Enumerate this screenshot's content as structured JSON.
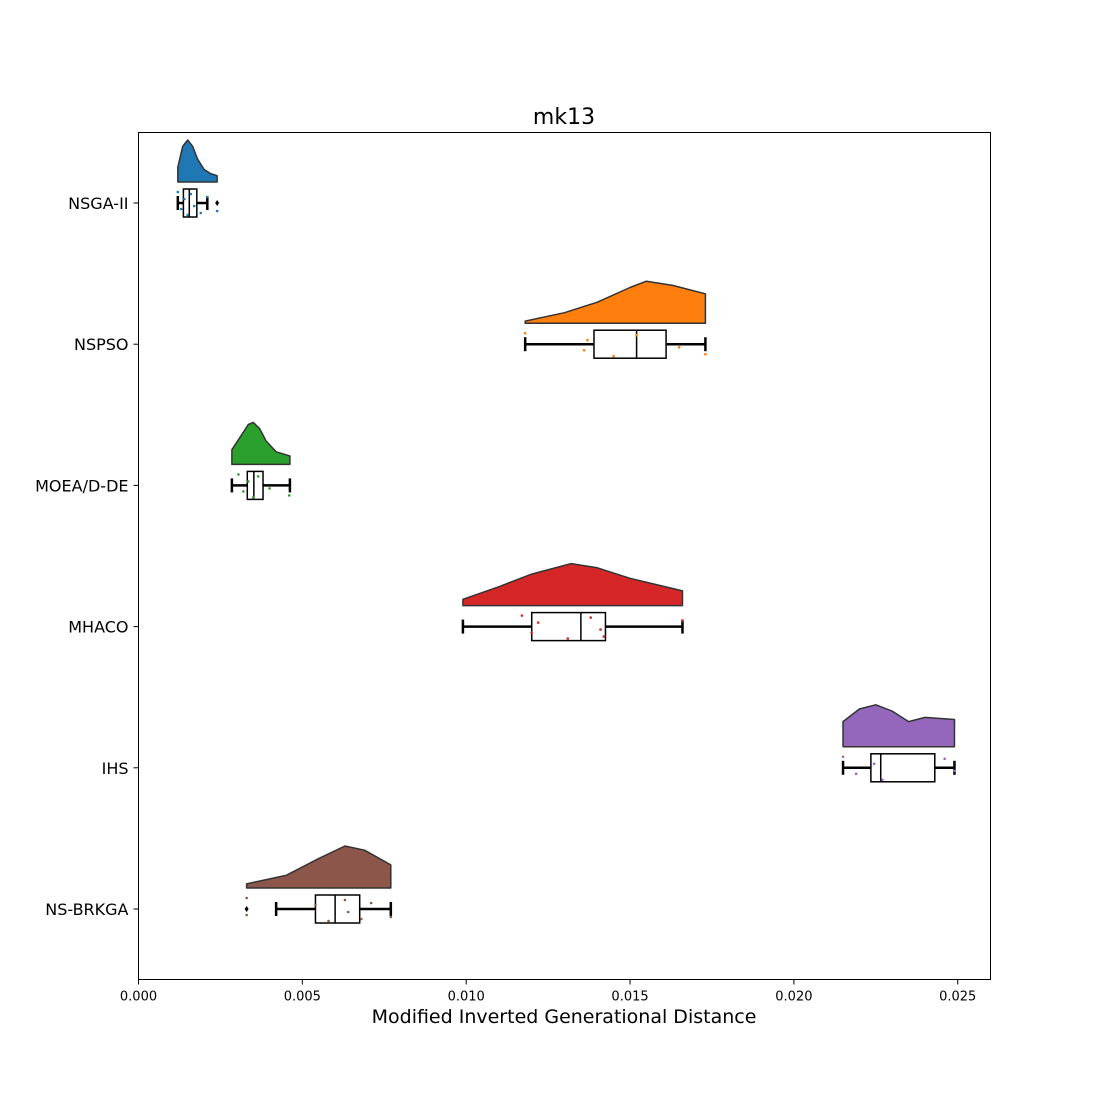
{
  "chart_data": {
    "type": "raincloud",
    "title": "mk13",
    "xlabel": "Modified Inverted Generational Distance",
    "ylabel": "",
    "xlim": [
      0.0,
      0.026
    ],
    "xticks": [
      "0.000",
      "0.005",
      "0.010",
      "0.015",
      "0.020",
      "0.025"
    ],
    "xtick_values": [
      0.0,
      0.005,
      0.01,
      0.015,
      0.02,
      0.025
    ],
    "grid": false,
    "categories": [
      "NSGA-II",
      "NSPSO",
      "MOEA/D-DE",
      "MHACO",
      "IHS",
      "NS-BRKGA"
    ],
    "series": [
      {
        "name": "NSGA-II",
        "color": "#1f77b4",
        "min": 0.0012,
        "q1": 0.00137,
        "median": 0.00155,
        "q3": 0.00178,
        "max": 0.0021,
        "outliers": [
          0.0024
        ],
        "points": [
          0.0012,
          0.0013,
          0.0014,
          0.0015,
          0.0016,
          0.0017,
          0.0019,
          0.0021,
          0.0024
        ],
        "density": [
          [
            0.0012,
            0.35
          ],
          [
            0.00135,
            0.85
          ],
          [
            0.0015,
            1.0
          ],
          [
            0.00165,
            0.85
          ],
          [
            0.0018,
            0.55
          ],
          [
            0.002,
            0.3
          ],
          [
            0.0022,
            0.2
          ],
          [
            0.0024,
            0.15
          ]
        ]
      },
      {
        "name": "NSPSO",
        "color": "#ff7f0e",
        "min": 0.0118,
        "q1": 0.0139,
        "median": 0.0152,
        "q3": 0.0161,
        "max": 0.0173,
        "outliers": [],
        "points": [
          0.0118,
          0.0136,
          0.0137,
          0.0145,
          0.0152,
          0.0165,
          0.0173
        ],
        "density": [
          [
            0.0118,
            0.05
          ],
          [
            0.013,
            0.25
          ],
          [
            0.014,
            0.5
          ],
          [
            0.015,
            0.85
          ],
          [
            0.0155,
            1.0
          ],
          [
            0.0163,
            0.9
          ],
          [
            0.0173,
            0.7
          ]
        ]
      },
      {
        "name": "MOEA/D-DE",
        "color": "#2ca02c",
        "min": 0.00285,
        "q1": 0.00332,
        "median": 0.00352,
        "q3": 0.0038,
        "max": 0.00462,
        "outliers": [],
        "points": [
          0.00305,
          0.0032,
          0.00335,
          0.0035,
          0.00365,
          0.004,
          0.0046
        ],
        "density": [
          [
            0.00285,
            0.35
          ],
          [
            0.0031,
            0.65
          ],
          [
            0.00335,
            0.95
          ],
          [
            0.0035,
            1.0
          ],
          [
            0.0037,
            0.85
          ],
          [
            0.0039,
            0.55
          ],
          [
            0.0042,
            0.3
          ],
          [
            0.00462,
            0.2
          ]
        ]
      },
      {
        "name": "MHACO",
        "color": "#d62728",
        "min": 0.0099,
        "q1": 0.012,
        "median": 0.0135,
        "q3": 0.01425,
        "max": 0.0166,
        "outliers": [],
        "points": [
          0.0117,
          0.012,
          0.0122,
          0.0131,
          0.0138,
          0.0141,
          0.0142,
          0.0166
        ],
        "density": [
          [
            0.0099,
            0.15
          ],
          [
            0.011,
            0.45
          ],
          [
            0.012,
            0.75
          ],
          [
            0.0132,
            1.0
          ],
          [
            0.014,
            0.9
          ],
          [
            0.015,
            0.65
          ],
          [
            0.0166,
            0.35
          ]
        ]
      },
      {
        "name": "IHS",
        "color": "#9467bd",
        "min": 0.0215,
        "q1": 0.02235,
        "median": 0.02265,
        "q3": 0.0243,
        "max": 0.0249,
        "outliers": [],
        "points": [
          0.0215,
          0.0219,
          0.02245,
          0.0227,
          0.0246,
          0.0249
        ],
        "density": [
          [
            0.0215,
            0.6
          ],
          [
            0.022,
            0.9
          ],
          [
            0.0225,
            1.0
          ],
          [
            0.023,
            0.85
          ],
          [
            0.0235,
            0.6
          ],
          [
            0.024,
            0.7
          ],
          [
            0.0249,
            0.65
          ]
        ]
      },
      {
        "name": "NS-BRKGA",
        "color": "#8c564b",
        "min": 0.0042,
        "q1": 0.0054,
        "median": 0.006,
        "q3": 0.00675,
        "max": 0.0077,
        "outliers": [
          0.0033
        ],
        "points": [
          0.0033,
          0.0033,
          0.0054,
          0.0058,
          0.0063,
          0.0064,
          0.0068,
          0.0071,
          0.0077
        ],
        "density": [
          [
            0.0033,
            0.1
          ],
          [
            0.0045,
            0.3
          ],
          [
            0.0055,
            0.7
          ],
          [
            0.0063,
            1.0
          ],
          [
            0.0069,
            0.9
          ],
          [
            0.0077,
            0.55
          ]
        ]
      }
    ]
  }
}
